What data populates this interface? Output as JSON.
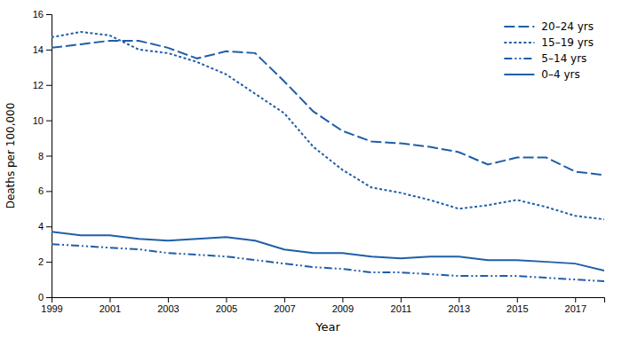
{
  "chart_data": {
    "type": "line",
    "x": [
      1999,
      2000,
      2001,
      2002,
      2003,
      2004,
      2005,
      2006,
      2007,
      2008,
      2009,
      2010,
      2011,
      2012,
      2013,
      2014,
      2015,
      2016,
      2017,
      2018
    ],
    "series": [
      {
        "name": "20–24 yrs",
        "color": "#1f5ea8",
        "line_style": "dashed",
        "values": [
          14.1,
          14.3,
          14.5,
          14.5,
          14.1,
          13.5,
          13.9,
          13.8,
          12.2,
          10.5,
          9.4,
          8.8,
          8.7,
          8.5,
          8.2,
          7.5,
          7.9,
          7.9,
          7.1,
          6.9
        ]
      },
      {
        "name": "15–19 yrs",
        "color": "#1f5ea8",
        "line_style": "dotted",
        "values": [
          14.7,
          15.0,
          14.8,
          14.0,
          13.8,
          13.3,
          12.6,
          11.5,
          10.4,
          8.5,
          7.2,
          6.2,
          5.9,
          5.5,
          5.0,
          5.2,
          5.5,
          5.1,
          4.6,
          4.4
        ]
      },
      {
        "name": "5–14 yrs",
        "color": "#1f5ea8",
        "line_style": "dashdotdot",
        "values": [
          3.0,
          2.9,
          2.8,
          2.7,
          2.5,
          2.4,
          2.3,
          2.1,
          1.9,
          1.7,
          1.6,
          1.4,
          1.4,
          1.3,
          1.2,
          1.2,
          1.2,
          1.1,
          1.0,
          0.9
        ]
      },
      {
        "name": "0–4 yrs",
        "color": "#1f5ea8",
        "line_style": "solid",
        "values": [
          3.7,
          3.5,
          3.5,
          3.3,
          3.2,
          3.3,
          3.4,
          3.2,
          2.7,
          2.5,
          2.5,
          2.3,
          2.2,
          2.3,
          2.3,
          2.1,
          2.1,
          2.0,
          1.9,
          1.5
        ]
      }
    ],
    "xlabel": "Year",
    "ylabel": "Deaths per 100,000",
    "xlim": [
      1999,
      2018
    ],
    "ylim": [
      0,
      16
    ],
    "xticks": [
      1999,
      2001,
      2003,
      2005,
      2007,
      2009,
      2011,
      2013,
      2015,
      2017
    ],
    "yticks": [
      0,
      2,
      4,
      6,
      8,
      10,
      12,
      14,
      16
    ],
    "legend": "upper right"
  }
}
